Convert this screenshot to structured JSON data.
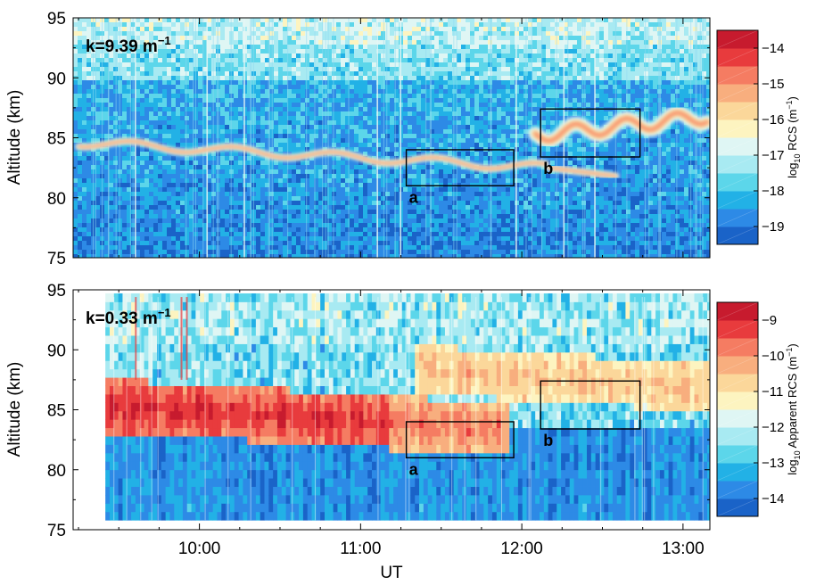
{
  "chart_data": [
    {
      "type": "heatmap",
      "panel_label": "k=9.39 m",
      "panel_label_sup": "−1",
      "ylabel": "Altitude (km)",
      "ylim": [
        75,
        95
      ],
      "y_ticks": [
        "75",
        "80",
        "85",
        "90",
        "95"
      ],
      "x_ticks": [
        "10:00",
        "11:00",
        "12:00",
        "13:00"
      ],
      "x_range_ut": [
        "09:13",
        "13:10"
      ],
      "colorbar": {
        "label_prefix": "log",
        "label_sub": "10",
        "label_main": " RCS (m",
        "label_sup": "−1",
        "label_suffix": ")",
        "range": [
          -19.5,
          -13.5
        ],
        "tick_labels": [
          "−14",
          "−15",
          "−16",
          "−17",
          "−18",
          "−19"
        ],
        "colors": [
          "#1a63c8",
          "#2d8ae6",
          "#22b1e6",
          "#5cd6ea",
          "#a8eaf2",
          "#dff6f4",
          "#fdf4c0",
          "#fbd79a",
          "#f8ae7e",
          "#f57c62",
          "#e83b3d",
          "#c71b2e"
        ]
      },
      "features": [
        {
          "name": "thin echo layer",
          "start": "09:15",
          "end": "12:10",
          "altitude_start_km": 84.6,
          "altitude_end_km": 82.5
        },
        {
          "name": "lower descending branch",
          "start": "12:10",
          "end": "12:35",
          "altitude_start_km": 82.5,
          "altitude_end_km": 81.8
        },
        {
          "name": "upper branch",
          "start": "12:05",
          "end": "13:10",
          "altitude_start_km": 85.2,
          "altitude_end_km": 86.8
        }
      ],
      "annotations": [
        {
          "label": "a",
          "x_range": [
            "11:17",
            "11:57"
          ],
          "y_range_km": [
            81.0,
            84.0
          ]
        },
        {
          "label": "b",
          "x_range": [
            "12:07",
            "12:44"
          ],
          "y_range_km": [
            83.4,
            87.4
          ]
        }
      ]
    },
    {
      "type": "heatmap",
      "panel_label": "k=0.33 m",
      "panel_label_sup": "−1",
      "ylabel": "Altitude (km)",
      "xlabel": "UT",
      "ylim": [
        75,
        95
      ],
      "y_ticks": [
        "75",
        "80",
        "85",
        "90",
        "95"
      ],
      "x_ticks": [
        "10:00",
        "11:00",
        "12:00",
        "13:00"
      ],
      "x_range_ut": [
        "09:13",
        "13:10"
      ],
      "data_extent": {
        "start": "09:25",
        "end": "13:10",
        "altitude_km": [
          75.8,
          94.4
        ]
      },
      "colorbar": {
        "label_prefix": "log",
        "label_sub": "10",
        "label_main": " Apparent RCS (m",
        "label_sup": "−1",
        "label_suffix": ")",
        "range": [
          -14.5,
          -8.5
        ],
        "tick_labels": [
          "−9",
          "−10",
          "−11",
          "−12",
          "−13",
          "−14"
        ],
        "colors": [
          "#1a63c8",
          "#2d8ae6",
          "#22b1e6",
          "#5cd6ea",
          "#a8eaf2",
          "#dff6f4",
          "#fdf4c0",
          "#fbd79a",
          "#f8ae7e",
          "#f57c62",
          "#e83b3d",
          "#c71b2e"
        ]
      },
      "features": [
        {
          "name": "main echo layer",
          "start": "09:25",
          "end": "11:55",
          "altitude_start_km": 85.0,
          "altitude_end_km": 83.0
        },
        {
          "name": "upper echo layer",
          "start": "11:20",
          "end": "13:10",
          "altitude_start_km": 88.0,
          "altitude_end_km": 86.5
        }
      ],
      "annotations": [
        {
          "label": "a",
          "x_range": [
            "11:17",
            "11:57"
          ],
          "y_range_km": [
            81.0,
            84.0
          ]
        },
        {
          "label": "b",
          "x_range": [
            "12:07",
            "12:44"
          ],
          "y_range_km": [
            83.4,
            87.4
          ]
        }
      ]
    }
  ]
}
